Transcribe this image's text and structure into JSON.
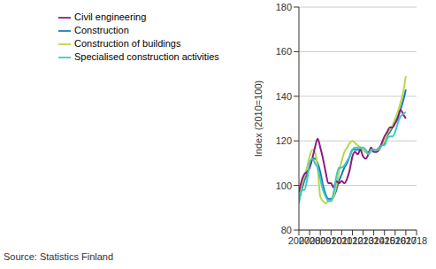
{
  "chart_data": {
    "type": "line",
    "y_label": "Index (2010=100)",
    "source": "Source: Statistics Finland",
    "x": [
      2007,
      2007.25,
      2007.5,
      2007.75,
      2008,
      2008.25,
      2008.5,
      2008.75,
      2009,
      2009.25,
      2009.5,
      2009.75,
      2010,
      2010.25,
      2010.5,
      2010.75,
      2011,
      2011.25,
      2011.5,
      2011.75,
      2012,
      2012.25,
      2012.5,
      2012.75,
      2013,
      2013.25,
      2013.5,
      2013.75,
      2014,
      2014.25,
      2014.5,
      2014.75,
      2015,
      2015.25,
      2015.5,
      2015.75,
      2016,
      2016.25,
      2016.5,
      2016.75,
      2017
    ],
    "series": [
      {
        "name": "Construction",
        "color": "#1f77b4",
        "values": [
          93,
          98,
          102,
          105,
          108,
          112,
          112,
          110,
          106,
          100,
          96,
          94,
          94,
          95,
          98,
          102,
          105,
          108,
          110,
          113,
          116,
          116,
          116,
          116,
          116,
          115,
          115,
          116,
          116,
          116,
          117,
          118,
          119,
          122,
          124,
          126,
          128,
          131,
          134,
          138,
          143
        ]
      },
      {
        "name": "Construction of buildings",
        "color": "#b7d84b",
        "values": [
          94,
          100,
          104,
          108,
          113,
          116,
          115,
          108,
          95,
          93,
          92,
          93,
          93,
          95,
          100,
          106,
          111,
          115,
          117,
          119,
          120,
          119,
          118,
          117,
          116,
          115,
          114,
          115,
          116,
          116,
          117,
          118,
          120,
          123,
          125,
          127,
          130,
          133,
          137,
          142,
          149
        ]
      },
      {
        "name": "Civil engineering",
        "color": "#8e1a7f",
        "values": [
          97,
          102,
          105,
          106,
          108,
          112,
          117,
          121,
          117,
          112,
          106,
          101,
          101,
          99,
          102,
          101,
          102,
          101,
          103,
          107,
          113,
          115,
          114,
          116,
          113,
          112,
          114,
          117,
          115,
          115,
          116,
          119,
          122,
          124,
          126,
          126,
          128,
          130,
          134,
          132,
          130
        ]
      },
      {
        "name": "Specialised construction activities",
        "color": "#3cc7c8",
        "values": [
          92,
          98,
          98,
          102,
          110,
          112,
          110,
          108,
          103,
          98,
          95,
          93,
          93,
          97,
          104,
          108,
          108,
          109,
          111,
          113,
          116,
          117,
          117,
          117,
          117,
          116,
          114,
          116,
          116,
          116,
          116,
          118,
          118,
          121,
          122,
          122,
          124,
          128,
          131,
          132,
          133
        ]
      }
    ],
    "xlim": [
      2007,
      2018
    ],
    "xticks": [
      2007,
      2008,
      2009,
      2010,
      2011,
      2012,
      2013,
      2014,
      2015,
      2016,
      2017,
      2018
    ],
    "ylim": [
      80,
      180
    ],
    "yticks": [
      80,
      100,
      120,
      140,
      160,
      180
    ],
    "grid": true,
    "legend": "top-left"
  }
}
